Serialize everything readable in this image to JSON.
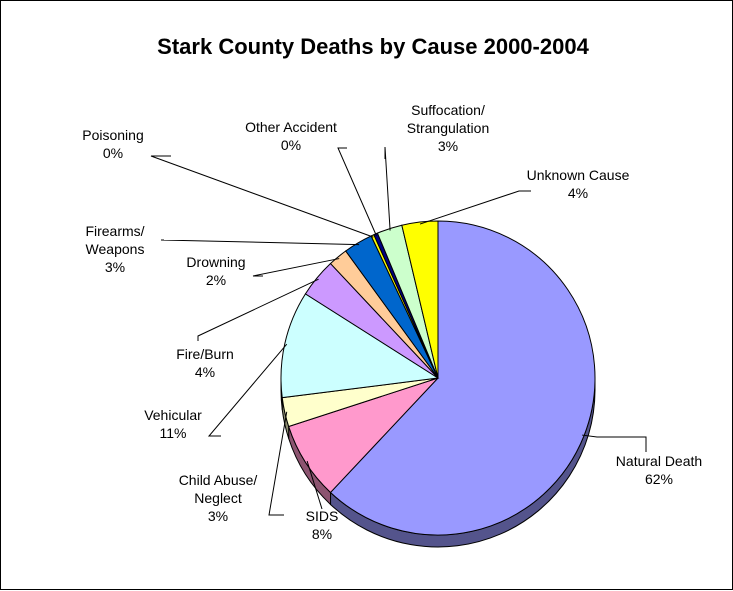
{
  "chart_data": {
    "type": "pie",
    "title": "Stark County Deaths by Cause 2000-2004",
    "slices": [
      {
        "label": [
          "Natural Death"
        ],
        "percent_label": "62%",
        "value": 62,
        "color": "#9999FF"
      },
      {
        "label": [
          "SIDS"
        ],
        "percent_label": "8%",
        "value": 8,
        "color": "#FF99CC"
      },
      {
        "label": [
          "Child Abuse/",
          "Neglect"
        ],
        "percent_label": "3%",
        "value": 3,
        "color": "#FFFFCC"
      },
      {
        "label": [
          "Vehicular"
        ],
        "percent_label": "11%",
        "value": 11,
        "color": "#CCFFFF"
      },
      {
        "label": [
          "Fire/Burn"
        ],
        "percent_label": "4%",
        "value": 4,
        "color": "#CC99FF"
      },
      {
        "label": [
          "Drowning"
        ],
        "percent_label": "2%",
        "value": 2,
        "color": "#FFCC99"
      },
      {
        "label": [
          "Firearms/",
          "Weapons"
        ],
        "percent_label": "3%",
        "value": 3,
        "color": "#0066CC"
      },
      {
        "label": [
          "Poisoning"
        ],
        "percent_label": "0%",
        "value": 0.3,
        "color": "#FFFF00"
      },
      {
        "label": [
          "Other Accident"
        ],
        "percent_label": "0%",
        "value": 0.4,
        "color": "#000080"
      },
      {
        "label": [
          "Suffocation/",
          "Strangulation"
        ],
        "percent_label": "3%",
        "value": 2.6,
        "color": "#CCFFCC"
      },
      {
        "label": [
          "Unknown Cause"
        ],
        "percent_label": "4%",
        "value": 3.7,
        "color": "#FFFF00"
      }
    ]
  }
}
